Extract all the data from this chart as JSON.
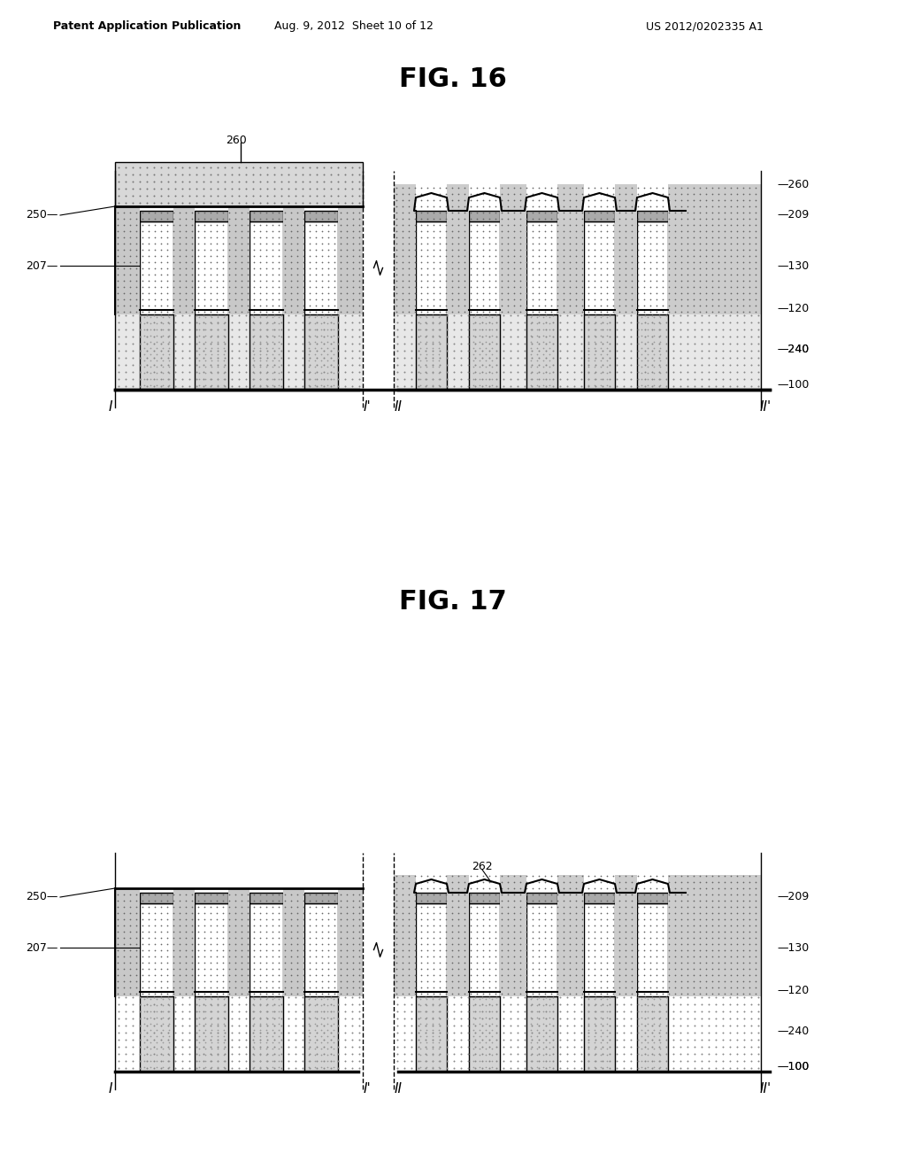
{
  "header_left": "Patent Application Publication",
  "header_center": "Aug. 9, 2012  Sheet 10 of 12",
  "header_right": "US 2012/0202335 A1",
  "fig16_title": "FIG. 16",
  "fig17_title": "FIG. 17",
  "bg_color": "#ffffff",
  "line_color": "#000000",
  "dot_fill": "#cccccc",
  "light_dot_fill": "#e0e0e0",
  "dark_fill": "#888888",
  "substrate_fill": "#dddddd"
}
